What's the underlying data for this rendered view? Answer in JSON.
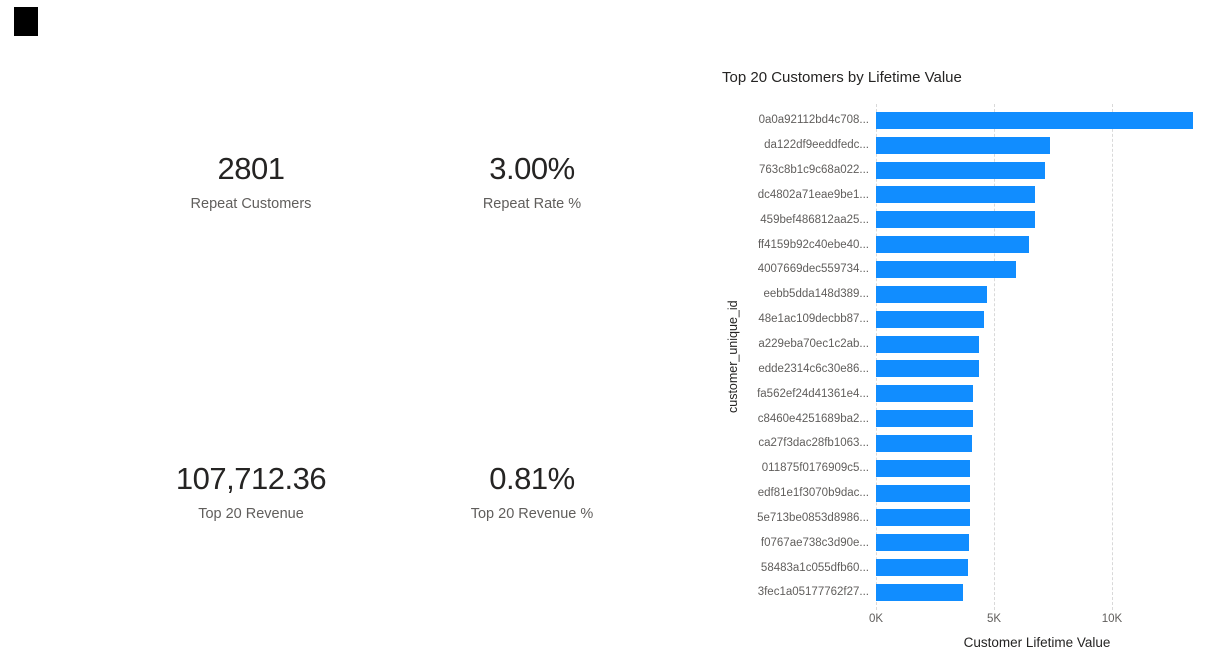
{
  "page": {
    "background": "#FFFFFF"
  },
  "decor": {
    "black_square_color": "#000000"
  },
  "kpis": [
    {
      "value": "2801",
      "label": "Repeat Customers"
    },
    {
      "value": "3.00%",
      "label": "Repeat Rate %"
    },
    {
      "value": "107,712.36",
      "label": "Top 20 Revenue"
    },
    {
      "value": "0.81%",
      "label": "Top 20 Revenue %"
    }
  ],
  "chart_data": {
    "type": "bar",
    "orientation": "horizontal",
    "title": "Top 20 Customers by Lifetime Value",
    "xlabel": "Customer Lifetime Value",
    "ylabel": "customer_unique_id",
    "x_ticks": [
      {
        "label": "0K",
        "value": 0
      },
      {
        "label": "5K",
        "value": 5000
      },
      {
        "label": "10K",
        "value": 10000
      }
    ],
    "xlim": [
      0,
      13440
    ],
    "grid": "vertical-dashed",
    "legend": "none",
    "bar_color": "#118DFF",
    "categories": [
      "0a0a92112bd4c708...",
      "da122df9eeddfedc...",
      "763c8b1c9c68a022...",
      "dc4802a71eae9be1...",
      "459bef486812aa25...",
      "ff4159b92c40ebe40...",
      "4007669dec559734...",
      "eebb5dda148d389...",
      "48e1ac109decbb87...",
      "a229eba70ec1c2ab...",
      "edde2314c6c30e86...",
      "fa562ef24d41361e4...",
      "c8460e4251689ba2...",
      "ca27f3dac28fb1063...",
      "011875f0176909c5...",
      "edf81e1f3070b9dac...",
      "5e713be0853d8986...",
      "f0767ae738c3d90e...",
      "58483a1c055dfb60...",
      "3fec1a05177762f27..."
    ],
    "values": [
      13440,
      7370,
      7160,
      6740,
      6730,
      6480,
      5930,
      4700,
      4590,
      4380,
      4360,
      4110,
      4100,
      4050,
      3990,
      3980,
      3960,
      3920,
      3910,
      3700
    ]
  },
  "colors": {
    "title_text": "#252423",
    "axis_tick_text": "#605E5C",
    "axis_title_text": "#252423",
    "kpi_value_text": "#252423",
    "kpi_label_text": "#605E5C",
    "gridline": "#D9D9D9",
    "bar": "#118DFF"
  }
}
